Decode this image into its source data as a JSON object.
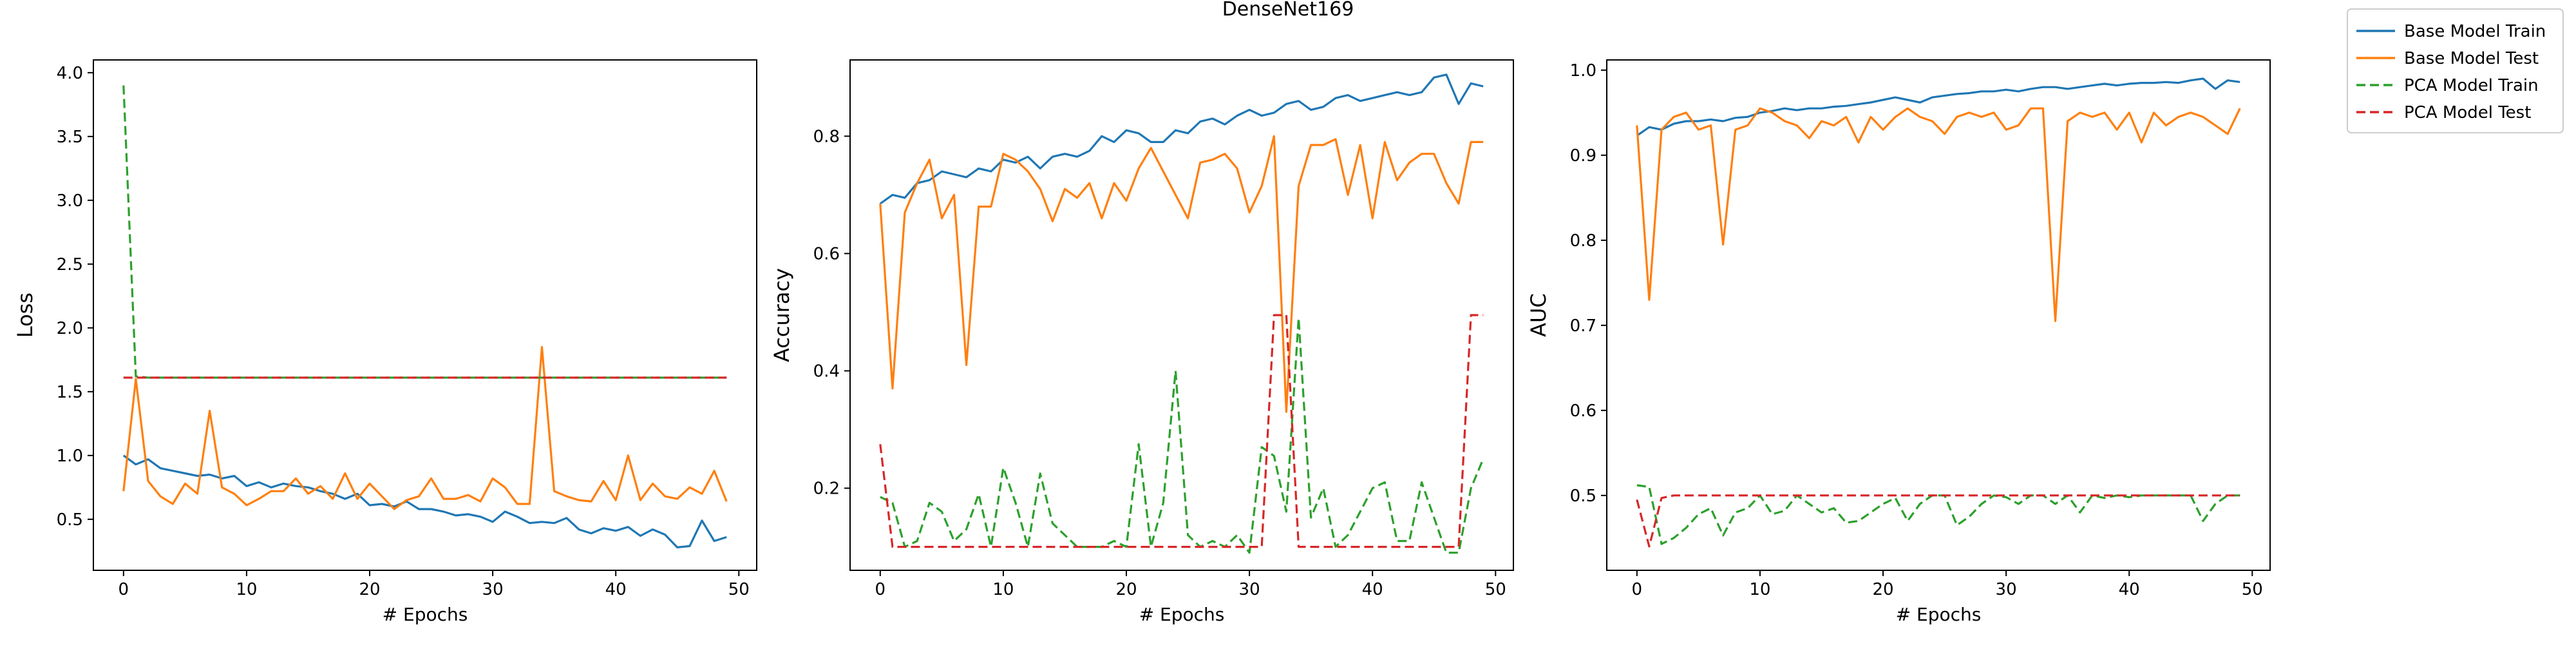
{
  "figure": {
    "title": "DenseNet169"
  },
  "legend": {
    "placement": "upper-right outside",
    "entries": [
      {
        "label": "Base Model Train",
        "color": "#1f77b4",
        "dash": "solid"
      },
      {
        "label": "Base Model Test",
        "color": "#ff7f0e",
        "dash": "solid"
      },
      {
        "label": "PCA Model Train",
        "color": "#2ca02c",
        "dash": "dashed"
      },
      {
        "label": "PCA Model Test",
        "color": "#d62728",
        "dash": "dashed"
      }
    ]
  },
  "chart_data": [
    {
      "type": "line",
      "title": "",
      "xlabel": "# Epochs",
      "ylabel": "Loss",
      "xlim": [
        -2.45,
        51.45
      ],
      "ylim": [
        0.1,
        4.1
      ],
      "xticks": [
        0,
        10,
        20,
        30,
        40,
        50
      ],
      "xtick_labels": [
        "0",
        "10",
        "20",
        "30",
        "40",
        "50"
      ],
      "yticks": [
        0.5,
        1.0,
        1.5,
        2.0,
        2.5,
        3.0,
        3.5,
        4.0
      ],
      "ytick_labels": [
        "0.5",
        "1.0",
        "1.5",
        "2.0",
        "2.5",
        "3.0",
        "3.5",
        "4.0"
      ],
      "grid": false,
      "x": [
        0,
        1,
        2,
        3,
        4,
        5,
        6,
        7,
        8,
        9,
        10,
        11,
        12,
        13,
        14,
        15,
        16,
        17,
        18,
        19,
        20,
        21,
        22,
        23,
        24,
        25,
        26,
        27,
        28,
        29,
        30,
        31,
        32,
        33,
        34,
        35,
        36,
        37,
        38,
        39,
        40,
        41,
        42,
        43,
        44,
        45,
        46,
        47,
        48,
        49
      ],
      "series": [
        {
          "name": "Base Model Train",
          "color": "#1f77b4",
          "dash": "solid",
          "values": [
            1.0,
            0.93,
            0.97,
            0.9,
            0.88,
            0.86,
            0.84,
            0.85,
            0.82,
            0.84,
            0.76,
            0.79,
            0.75,
            0.78,
            0.76,
            0.75,
            0.72,
            0.7,
            0.66,
            0.7,
            0.61,
            0.62,
            0.6,
            0.64,
            0.58,
            0.58,
            0.56,
            0.53,
            0.54,
            0.52,
            0.48,
            0.56,
            0.52,
            0.47,
            0.48,
            0.47,
            0.51,
            0.42,
            0.39,
            0.43,
            0.41,
            0.44,
            0.37,
            0.42,
            0.38,
            0.28,
            0.29,
            0.49,
            0.33,
            0.36
          ]
        },
        {
          "name": "Base Model Test",
          "color": "#ff7f0e",
          "dash": "solid",
          "values": [
            0.72,
            1.6,
            0.8,
            0.68,
            0.62,
            0.78,
            0.7,
            1.35,
            0.75,
            0.7,
            0.61,
            0.66,
            0.72,
            0.72,
            0.82,
            0.7,
            0.76,
            0.66,
            0.86,
            0.66,
            0.78,
            0.68,
            0.58,
            0.65,
            0.68,
            0.82,
            0.66,
            0.66,
            0.69,
            0.64,
            0.82,
            0.75,
            0.62,
            0.62,
            1.85,
            0.72,
            0.68,
            0.65,
            0.64,
            0.8,
            0.65,
            1.0,
            0.65,
            0.78,
            0.68,
            0.66,
            0.75,
            0.7,
            0.88,
            0.64
          ]
        },
        {
          "name": "PCA Model Train",
          "color": "#2ca02c",
          "dash": "dashed",
          "values": [
            3.9,
            1.62,
            1.61,
            1.61,
            1.61,
            1.61,
            1.61,
            1.61,
            1.61,
            1.61,
            1.61,
            1.61,
            1.61,
            1.61,
            1.61,
            1.61,
            1.61,
            1.61,
            1.61,
            1.61,
            1.61,
            1.61,
            1.61,
            1.61,
            1.61,
            1.61,
            1.61,
            1.61,
            1.61,
            1.61,
            1.61,
            1.61,
            1.61,
            1.61,
            1.61,
            1.61,
            1.61,
            1.61,
            1.61,
            1.61,
            1.61,
            1.61,
            1.61,
            1.61,
            1.61,
            1.61,
            1.61,
            1.61,
            1.61,
            1.61
          ]
        },
        {
          "name": "PCA Model Test",
          "color": "#d62728",
          "dash": "dashed",
          "values": [
            1.61,
            1.61,
            1.61,
            1.61,
            1.61,
            1.61,
            1.61,
            1.61,
            1.61,
            1.61,
            1.61,
            1.61,
            1.61,
            1.61,
            1.61,
            1.61,
            1.61,
            1.61,
            1.61,
            1.61,
            1.61,
            1.61,
            1.61,
            1.61,
            1.61,
            1.61,
            1.61,
            1.61,
            1.61,
            1.61,
            1.61,
            1.61,
            1.61,
            1.61,
            1.61,
            1.61,
            1.61,
            1.61,
            1.61,
            1.61,
            1.61,
            1.61,
            1.61,
            1.61,
            1.61,
            1.61,
            1.61,
            1.61,
            1.61,
            1.61
          ]
        }
      ]
    },
    {
      "type": "line",
      "title": "",
      "xlabel": "# Epochs",
      "ylabel": "Accuracy",
      "xlim": [
        -2.45,
        51.45
      ],
      "ylim": [
        0.06,
        0.93
      ],
      "xticks": [
        0,
        10,
        20,
        30,
        40,
        50
      ],
      "xtick_labels": [
        "0",
        "10",
        "20",
        "30",
        "40",
        "50"
      ],
      "yticks": [
        0.2,
        0.4,
        0.6,
        0.8
      ],
      "ytick_labels": [
        "0.2",
        "0.4",
        "0.6",
        "0.8"
      ],
      "grid": false,
      "x": [
        0,
        1,
        2,
        3,
        4,
        5,
        6,
        7,
        8,
        9,
        10,
        11,
        12,
        13,
        14,
        15,
        16,
        17,
        18,
        19,
        20,
        21,
        22,
        23,
        24,
        25,
        26,
        27,
        28,
        29,
        30,
        31,
        32,
        33,
        34,
        35,
        36,
        37,
        38,
        39,
        40,
        41,
        42,
        43,
        44,
        45,
        46,
        47,
        48,
        49
      ],
      "series": [
        {
          "name": "Base Model Train",
          "color": "#1f77b4",
          "dash": "solid",
          "values": [
            0.685,
            0.7,
            0.695,
            0.72,
            0.725,
            0.74,
            0.735,
            0.73,
            0.745,
            0.74,
            0.76,
            0.755,
            0.765,
            0.745,
            0.765,
            0.77,
            0.765,
            0.775,
            0.8,
            0.79,
            0.81,
            0.805,
            0.79,
            0.79,
            0.81,
            0.805,
            0.825,
            0.83,
            0.82,
            0.835,
            0.845,
            0.835,
            0.84,
            0.855,
            0.86,
            0.845,
            0.85,
            0.865,
            0.87,
            0.86,
            0.865,
            0.87,
            0.875,
            0.87,
            0.875,
            0.9,
            0.905,
            0.855,
            0.89,
            0.885
          ]
        },
        {
          "name": "Base Model Test",
          "color": "#ff7f0e",
          "dash": "solid",
          "values": [
            0.685,
            0.37,
            0.67,
            0.72,
            0.76,
            0.66,
            0.7,
            0.41,
            0.68,
            0.68,
            0.77,
            0.76,
            0.74,
            0.71,
            0.655,
            0.71,
            0.695,
            0.72,
            0.66,
            0.72,
            0.69,
            0.745,
            0.78,
            0.74,
            0.7,
            0.66,
            0.755,
            0.76,
            0.77,
            0.745,
            0.67,
            0.715,
            0.8,
            0.33,
            0.715,
            0.785,
            0.785,
            0.795,
            0.7,
            0.785,
            0.66,
            0.79,
            0.725,
            0.755,
            0.77,
            0.77,
            0.72,
            0.685,
            0.79,
            0.79
          ]
        },
        {
          "name": "PCA Model Train",
          "color": "#2ca02c",
          "dash": "dashed",
          "values": [
            0.185,
            0.175,
            0.1,
            0.11,
            0.175,
            0.16,
            0.11,
            0.13,
            0.19,
            0.1,
            0.235,
            0.175,
            0.1,
            0.225,
            0.14,
            0.12,
            0.1,
            0.1,
            0.1,
            0.11,
            0.1,
            0.275,
            0.1,
            0.175,
            0.4,
            0.12,
            0.1,
            0.11,
            0.1,
            0.12,
            0.09,
            0.27,
            0.255,
            0.16,
            0.49,
            0.15,
            0.2,
            0.1,
            0.12,
            0.16,
            0.2,
            0.21,
            0.11,
            0.11,
            0.21,
            0.15,
            0.09,
            0.09,
            0.2,
            0.25
          ]
        },
        {
          "name": "PCA Model Test",
          "color": "#d62728",
          "dash": "dashed",
          "values": [
            0.275,
            0.1,
            0.1,
            0.1,
            0.1,
            0.1,
            0.1,
            0.1,
            0.1,
            0.1,
            0.1,
            0.1,
            0.1,
            0.1,
            0.1,
            0.1,
            0.1,
            0.1,
            0.1,
            0.1,
            0.1,
            0.1,
            0.1,
            0.1,
            0.1,
            0.1,
            0.1,
            0.1,
            0.1,
            0.1,
            0.1,
            0.1,
            0.495,
            0.495,
            0.1,
            0.1,
            0.1,
            0.1,
            0.1,
            0.1,
            0.1,
            0.1,
            0.1,
            0.1,
            0.1,
            0.1,
            0.1,
            0.1,
            0.495,
            0.495
          ]
        }
      ]
    },
    {
      "type": "line",
      "title": "",
      "xlabel": "# Epochs",
      "ylabel": "AUC",
      "xlim": [
        -2.45,
        51.45
      ],
      "ylim": [
        0.412,
        1.012
      ],
      "xticks": [
        0,
        10,
        20,
        30,
        40,
        50
      ],
      "xtick_labels": [
        "0",
        "10",
        "20",
        "30",
        "40",
        "50"
      ],
      "yticks": [
        0.5,
        0.6,
        0.7,
        0.8,
        0.9,
        1.0
      ],
      "ytick_labels": [
        "0.5",
        "0.6",
        "0.7",
        "0.8",
        "0.9",
        "1.0"
      ],
      "grid": false,
      "x": [
        0,
        1,
        2,
        3,
        4,
        5,
        6,
        7,
        8,
        9,
        10,
        11,
        12,
        13,
        14,
        15,
        16,
        17,
        18,
        19,
        20,
        21,
        22,
        23,
        24,
        25,
        26,
        27,
        28,
        29,
        30,
        31,
        32,
        33,
        34,
        35,
        36,
        37,
        38,
        39,
        40,
        41,
        42,
        43,
        44,
        45,
        46,
        47,
        48,
        49
      ],
      "series": [
        {
          "name": "Base Model Train",
          "color": "#1f77b4",
          "dash": "solid",
          "values": [
            0.923,
            0.933,
            0.93,
            0.937,
            0.94,
            0.94,
            0.942,
            0.94,
            0.944,
            0.945,
            0.95,
            0.952,
            0.955,
            0.953,
            0.955,
            0.955,
            0.957,
            0.958,
            0.96,
            0.962,
            0.965,
            0.968,
            0.965,
            0.962,
            0.968,
            0.97,
            0.972,
            0.973,
            0.975,
            0.975,
            0.977,
            0.975,
            0.978,
            0.98,
            0.98,
            0.978,
            0.98,
            0.982,
            0.984,
            0.982,
            0.984,
            0.985,
            0.985,
            0.986,
            0.985,
            0.988,
            0.99,
            0.978,
            0.988,
            0.986
          ]
        },
        {
          "name": "Base Model Test",
          "color": "#ff7f0e",
          "dash": "solid",
          "values": [
            0.935,
            0.73,
            0.93,
            0.945,
            0.95,
            0.93,
            0.935,
            0.795,
            0.93,
            0.935,
            0.955,
            0.95,
            0.94,
            0.935,
            0.92,
            0.94,
            0.935,
            0.945,
            0.915,
            0.945,
            0.93,
            0.945,
            0.955,
            0.945,
            0.94,
            0.925,
            0.945,
            0.95,
            0.945,
            0.95,
            0.93,
            0.935,
            0.955,
            0.955,
            0.705,
            0.94,
            0.95,
            0.945,
            0.95,
            0.93,
            0.95,
            0.915,
            0.95,
            0.935,
            0.945,
            0.95,
            0.945,
            0.935,
            0.925,
            0.955
          ]
        },
        {
          "name": "PCA Model Train",
          "color": "#2ca02c",
          "dash": "dashed",
          "values": [
            0.512,
            0.51,
            0.443,
            0.45,
            0.462,
            0.478,
            0.485,
            0.453,
            0.48,
            0.485,
            0.5,
            0.478,
            0.482,
            0.5,
            0.49,
            0.48,
            0.485,
            0.468,
            0.47,
            0.48,
            0.49,
            0.497,
            0.47,
            0.49,
            0.5,
            0.5,
            0.465,
            0.475,
            0.49,
            0.5,
            0.498,
            0.49,
            0.5,
            0.5,
            0.49,
            0.5,
            0.48,
            0.5,
            0.497,
            0.5,
            0.498,
            0.5,
            0.5,
            0.5,
            0.5,
            0.5,
            0.47,
            0.49,
            0.5,
            0.5
          ]
        },
        {
          "name": "PCA Model Test",
          "color": "#d62728",
          "dash": "dashed",
          "values": [
            0.495,
            0.44,
            0.497,
            0.5,
            0.5,
            0.5,
            0.5,
            0.5,
            0.5,
            0.5,
            0.5,
            0.5,
            0.5,
            0.5,
            0.5,
            0.5,
            0.5,
            0.5,
            0.5,
            0.5,
            0.5,
            0.5,
            0.5,
            0.5,
            0.5,
            0.5,
            0.5,
            0.5,
            0.5,
            0.5,
            0.5,
            0.5,
            0.5,
            0.5,
            0.5,
            0.5,
            0.5,
            0.5,
            0.5,
            0.5,
            0.5,
            0.5,
            0.5,
            0.5,
            0.5,
            0.5,
            0.5,
            0.5,
            0.5,
            0.5
          ]
        }
      ]
    }
  ]
}
